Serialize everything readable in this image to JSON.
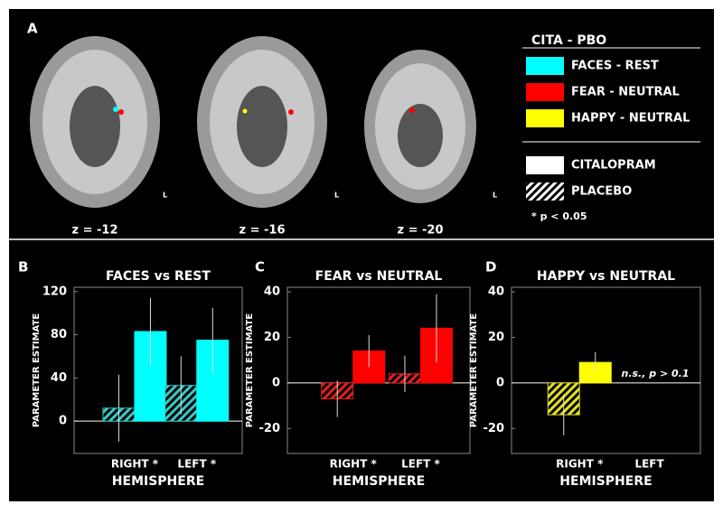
{
  "figure": {
    "panels": [
      "A",
      "B",
      "C",
      "D"
    ],
    "contrast_legend": {
      "title": "CITA - PBO",
      "items": [
        {
          "label": "FACES - REST",
          "color": "#00ffff"
        },
        {
          "label": "FEAR - NEUTRAL",
          "color": "#ff0000"
        },
        {
          "label": "HAPPY - NEUTRAL",
          "color": "#ffff00"
        }
      ]
    },
    "significance": "* p < 0.05",
    "slices": [
      {
        "z": "z = -12",
        "side": "L"
      },
      {
        "z": "z = -16",
        "side": "L"
      },
      {
        "z": "z = -20",
        "side": "L"
      }
    ]
  },
  "chart_data": [
    {
      "type": "bar",
      "title": "FACES vs REST",
      "ylabel": "PARAMETER ESTIMATE",
      "xlabel": "HEMISPHERE",
      "categories": [
        "RIGHT *",
        "LEFT *"
      ],
      "ylim": [
        -30,
        124
      ],
      "yticks": [
        0,
        40,
        80,
        120
      ],
      "series": [
        {
          "name": "PLACEBO",
          "color": "#33cccc",
          "hatch": true,
          "values": [
            12,
            33
          ],
          "errors": [
            31,
            27
          ]
        },
        {
          "name": "CITALOPRAM",
          "color": "#00ffff",
          "hatch": false,
          "values": [
            83,
            75
          ],
          "errors": [
            31,
            30
          ]
        }
      ]
    },
    {
      "type": "bar",
      "title": "FEAR vs NEUTRAL",
      "ylabel": "PARAMETER ESTIMATE",
      "xlabel": "HEMISPHERE",
      "categories": [
        "RIGHT *",
        "LEFT *"
      ],
      "ylim": [
        -31,
        42
      ],
      "yticks": [
        -20,
        0,
        20,
        40
      ],
      "series": [
        {
          "name": "PLACEBO",
          "color": "#e02020",
          "hatch": true,
          "values": [
            -7,
            4
          ],
          "errors": [
            8,
            8
          ]
        },
        {
          "name": "CITALOPRAM",
          "color": "#ff0000",
          "hatch": false,
          "values": [
            14,
            24
          ],
          "errors": [
            7,
            15
          ]
        }
      ]
    },
    {
      "type": "bar",
      "title": "HAPPY vs NEUTRAL",
      "ylabel": "PARAMETER ESTIMATE",
      "xlabel": "HEMISPHERE",
      "categories": [
        "RIGHT *",
        "LEFT"
      ],
      "ylim": [
        -31,
        42
      ],
      "yticks": [
        -20,
        0,
        20,
        40
      ],
      "annotation": "n.s., p > 0.1",
      "series": [
        {
          "name": "PLACEBO",
          "color": "#e0e020",
          "hatch": true,
          "values": [
            -14,
            null
          ],
          "errors": [
            9,
            null
          ]
        },
        {
          "name": "CITALOPRAM",
          "color": "#ffff00",
          "hatch": false,
          "values": [
            9,
            null
          ],
          "errors": [
            4.5,
            null
          ]
        }
      ]
    }
  ]
}
